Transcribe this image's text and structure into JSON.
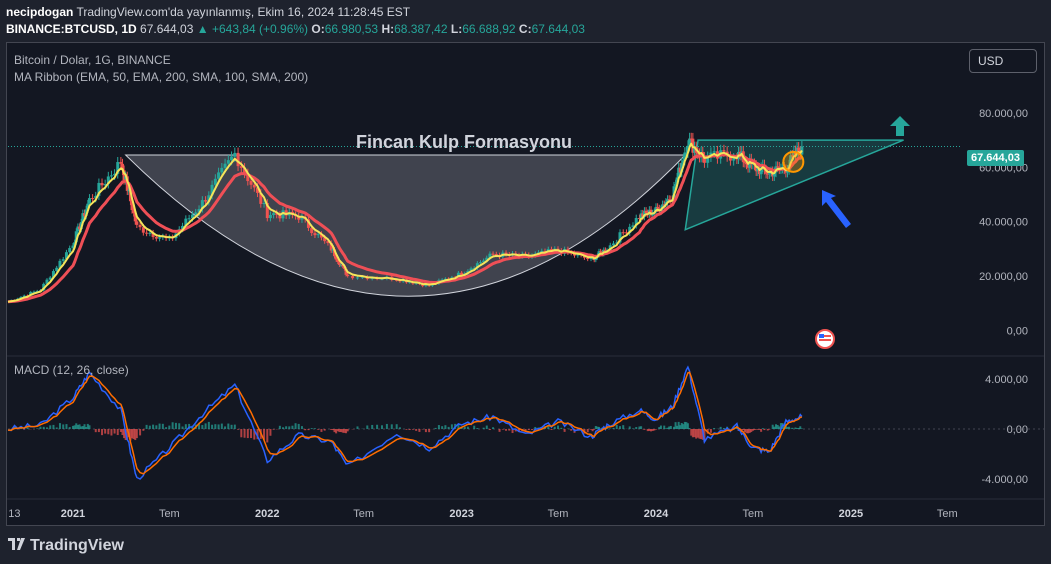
{
  "header": {
    "author": "necipdogan",
    "published": "TradingView.com'da yayınlanmış, Ekim 16, 2024 11:28:45 EST",
    "symbol": "BINANCE:BTCUSD, 1D",
    "last": "67.644,03",
    "change": "▲ +643,84 (+0.96%)",
    "o_label": "O:",
    "o_val": "66.980,53",
    "h_label": "H:",
    "h_val": "68.387,42",
    "l_label": "L:",
    "l_val": "66.688,92",
    "c_label": "C:",
    "c_val": "67.644,03"
  },
  "legend": {
    "main": "Bitcoin / Dolar, 1G, BINANCE",
    "ma": "MA Ribbon (EMA, 50, EMA, 200, SMA, 100, SMA, 200)",
    "macd": "MACD (12, 26, close)"
  },
  "currency_button": "USD",
  "price_tag": "67.644,03",
  "annotation": "Fincan Kulp Formasyonu",
  "branding": "TradingView",
  "colors": {
    "background": "#131722",
    "up": "#26a69a",
    "down": "#ef5350",
    "ema50": "#f5e45a",
    "ema200": "#ef4f56",
    "macd_line": "#2962ff",
    "signal_line": "#ff6d00",
    "arrow_up": "#26a69a",
    "arrow_blue": "#2962ff"
  },
  "icons": [
    "arrow-up-icon",
    "arrow-pointer-icon",
    "us-flag-icon",
    "tradingview-logo-icon"
  ],
  "chart_data": [
    {
      "type": "line",
      "title": "Bitcoin / Dolar, 1G, BINANCE",
      "x": [
        "2020-09",
        "2020-11",
        "2021-01",
        "2021-02",
        "2021-04",
        "2021-05",
        "2021-07",
        "2021-09",
        "2021-11",
        "2022-01",
        "2022-03",
        "2022-05",
        "2022-06",
        "2022-09",
        "2022-11",
        "2023-01",
        "2023-03",
        "2023-05",
        "2023-07",
        "2023-09",
        "2023-10",
        "2023-12",
        "2024-01",
        "2024-02",
        "2024-03",
        "2024-04",
        "2024-06",
        "2024-07",
        "2024-08",
        "2024-09",
        "2024-10"
      ],
      "series": [
        {
          "values": [
            10500,
            15000,
            32000,
            48000,
            62000,
            38000,
            33000,
            47000,
            65000,
            43000,
            42000,
            30000,
            20000,
            19000,
            16500,
            21000,
            28000,
            27000,
            29500,
            26000,
            30000,
            42000,
            44000,
            50000,
            70000,
            63000,
            65000,
            60000,
            58000,
            60000,
            67644
          ]
        }
      ],
      "y_ticks": [
        "0,00",
        "20.000,00",
        "40.000,00",
        "60.000,00",
        "80.000,00"
      ],
      "x_ticks": [
        "13",
        "2021",
        "Tem",
        "2022",
        "Tem",
        "2023",
        "Tem",
        "2024",
        "Tem",
        "2025",
        "Tem"
      ],
      "last_price": 67644.03,
      "ylim": [
        -8000,
        105000
      ],
      "grid": false
    },
    {
      "type": "line",
      "title": "MACD (12, 26, close)",
      "x": [
        "2020-09",
        "2020-11",
        "2021-01",
        "2021-02",
        "2021-04",
        "2021-05",
        "2021-07",
        "2021-09",
        "2021-11",
        "2022-01",
        "2022-03",
        "2022-05",
        "2022-06",
        "2022-09",
        "2022-11",
        "2023-01",
        "2023-03",
        "2023-05",
        "2023-07",
        "2023-09",
        "2023-10",
        "2023-12",
        "2024-01",
        "2024-02",
        "2024-03",
        "2024-04",
        "2024-06",
        "2024-07",
        "2024-08",
        "2024-09",
        "2024-10"
      ],
      "series": [
        {
          "values": [
            0,
            300,
            2500,
            4500,
            1500,
            -4000,
            -1500,
            1200,
            3500,
            -2500,
            -500,
            -1000,
            -3000,
            -300,
            -1500,
            400,
            1000,
            -500,
            600,
            -600,
            300,
            1500,
            800,
            1800,
            5000,
            -800,
            200,
            -1500,
            -1800,
            600,
            1000
          ]
        }
      ],
      "y_ticks": [
        "4.000,00",
        "0,00",
        "-4.000,00"
      ],
      "ylim": [
        -5500,
        5500
      ]
    }
  ]
}
